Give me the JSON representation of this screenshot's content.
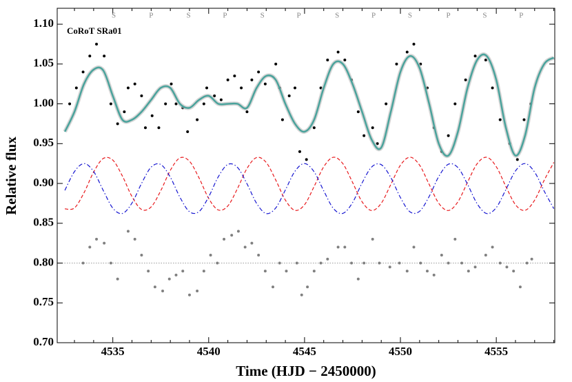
{
  "chart_data": {
    "type": "scatter",
    "label": "CoRoT SRa01",
    "xlabel": "Time (HJD − 2450000)",
    "ylabel": "Relative flux",
    "xlim": [
      4532.1,
      4558.05
    ],
    "ylim": [
      0.7,
      1.12
    ],
    "xticks": [
      4535,
      4540,
      4545,
      4550,
      4555
    ],
    "xminorticks": [
      4533,
      4534,
      4536,
      4537,
      4538,
      4539,
      4541,
      4542,
      4543,
      4544,
      4546,
      4547,
      4548,
      4549,
      4551,
      4552,
      4553,
      4554,
      4556,
      4557,
      4558
    ],
    "yticks": [
      {
        "value": 0.7,
        "label": "0.70"
      },
      0.75,
      {
        "value": 0.8,
        "label": "0.80"
      },
      0.85,
      {
        "value": 0.9,
        "label": "0.90"
      },
      0.95,
      {
        "value": 1.0,
        "label": "1.00"
      },
      1.05,
      {
        "value": 1.1,
        "label": "1.10"
      }
    ],
    "reference_line": 0.8,
    "phase_labels": [
      {
        "text": "S",
        "x": 4535.05
      },
      {
        "text": "P",
        "x": 4537.0
      },
      {
        "text": "S",
        "x": 4538.95
      },
      {
        "text": "P",
        "x": 4540.85
      },
      {
        "text": "S",
        "x": 4542.8
      },
      {
        "text": "P",
        "x": 4544.7
      },
      {
        "text": "S",
        "x": 4546.7
      },
      {
        "text": "P",
        "x": 4548.6
      },
      {
        "text": "S",
        "x": 4550.5
      },
      {
        "text": "P",
        "x": 4552.5
      },
      {
        "text": "S",
        "x": 4554.4
      },
      {
        "text": "P",
        "x": 4556.3
      }
    ],
    "x": [
      4532.5,
      4533,
      4533.5,
      4534,
      4534.5,
      4535,
      4535.5,
      4536,
      4536.5,
      4537,
      4537.5,
      4538,
      4538.5,
      4539,
      4539.5,
      4540,
      4540.5,
      4541,
      4541.5,
      4542,
      4542.5,
      4543,
      4543.5,
      4544,
      4544.5,
      4545,
      4545.5,
      4546,
      4546.5,
      4547,
      4547.5,
      4548,
      4548.5,
      4549,
      4549.5,
      4550,
      4550.5,
      4551,
      4551.5,
      4552,
      4552.5,
      4553,
      4553.5,
      4554,
      4554.5,
      4555,
      4555.5,
      4556,
      4556.5,
      4557,
      4557.5,
      4558
    ],
    "series": [
      {
        "type": "scatter",
        "color": "#000000",
        "x": [
          4532.75,
          4533.1,
          4533.45,
          4533.8,
          4534.15,
          4534.55,
          4534.9,
          4535.25,
          4535.6,
          4535.8,
          4536.15,
          4536.5,
          4536.7,
          4537.05,
          4537.4,
          4537.75,
          4538.05,
          4538.3,
          4538.65,
          4538.9,
          4539.4,
          4539.75,
          4539.9,
          4540.3,
          4540.65,
          4541.0,
          4541.35,
          4541.7,
          4542.0,
          4542.25,
          4542.6,
          4542.95,
          4543.5,
          4543.7,
          4543.85,
          4544.2,
          4544.5,
          4544.75,
          4545.1,
          4545.5,
          4545.85,
          4546.2,
          4546.75,
          4547.1,
          4547.45,
          4547.8,
          4548.1,
          4548.55,
          4548.8,
          4549.25,
          4549.8,
          4550.35,
          4550.7,
          4551.05,
          4551.4,
          4551.75,
          4552.15,
          4552.5,
          4552.85,
          4553.4,
          4553.9,
          4554.45,
          4554.8,
          4555.2,
          4555.7,
          4556.1,
          4556.45,
          4556.8
        ],
        "values": [
          1.0,
          1.02,
          1.04,
          1.06,
          1.075,
          1.06,
          1.0,
          0.975,
          0.99,
          1.02,
          1.025,
          1.01,
          0.97,
          0.985,
          0.97,
          1.0,
          1.025,
          1.0,
          0.995,
          0.965,
          0.98,
          1.0,
          1.02,
          1.01,
          1.005,
          1.03,
          1.035,
          1.02,
          0.99,
          1.03,
          1.04,
          1.025,
          1.05,
          1.02,
          0.98,
          1.01,
          1.02,
          0.94,
          0.93,
          0.97,
          1.02,
          1.055,
          1.065,
          1.055,
          1.03,
          0.99,
          0.96,
          0.97,
          0.95,
          1.0,
          1.05,
          1.065,
          1.075,
          1.05,
          1.02,
          0.97,
          0.94,
          0.96,
          1.0,
          1.03,
          1.06,
          1.055,
          1.02,
          0.98,
          0.95,
          0.93,
          0.98,
          1.0
        ]
      },
      {
        "type": "line",
        "color": "#4aa39c",
        "style": "solid",
        "values": [
          0.965,
          0.99,
          1.025,
          1.043,
          1.042,
          1.01,
          0.98,
          0.98,
          0.99,
          1.005,
          1.02,
          1.02,
          1.0,
          0.995,
          1.005,
          1.01,
          1.0,
          1.0,
          1.0,
          0.995,
          1.02,
          1.035,
          1.03,
          1.0,
          0.975,
          0.965,
          0.98,
          1.02,
          1.05,
          1.05,
          1.025,
          0.99,
          0.955,
          0.945,
          0.99,
          1.04,
          1.06,
          1.045,
          1.0,
          0.95,
          0.935,
          0.965,
          1.02,
          1.055,
          1.06,
          1.03,
          0.97,
          0.935,
          0.96,
          1.02,
          1.05,
          1.058
        ]
      },
      {
        "type": "line",
        "color": "#e8191c",
        "style": "dashed",
        "values": [
          0.8681,
          0.8692,
          0.8884,
          0.9143,
          0.9313,
          0.9293,
          0.9093,
          0.8835,
          0.8673,
          0.8705,
          0.8909,
          0.9165,
          0.9321,
          0.9279,
          0.9068,
          0.8812,
          0.8667,
          0.8718,
          0.8935,
          0.9189,
          0.9326,
          0.9264,
          0.9042,
          0.8791,
          0.8662,
          0.8733,
          0.8962,
          0.9209,
          0.9329,
          0.9248,
          0.9015,
          0.877,
          0.866,
          0.8751,
          0.8988,
          0.9229,
          0.933,
          0.923,
          0.8988,
          0.8751,
          0.866,
          0.877,
          0.9015,
          0.9247,
          0.9329,
          0.921,
          0.8962,
          0.8733,
          0.8662,
          0.879,
          0.9041,
          0.9264
        ]
      },
      {
        "type": "line",
        "color": "#1515d0",
        "style": "dashdot",
        "values": [
          0.8913,
          0.9149,
          0.925,
          0.915,
          0.8913,
          0.869,
          0.8623,
          0.8754,
          0.9001,
          0.9205,
          0.9238,
          0.9078,
          0.8827,
          0.8645,
          0.8647,
          0.8832,
          0.9083,
          0.9239,
          0.9202,
          0.8995,
          0.875,
          0.8622,
          0.8693,
          0.8918,
          0.9153,
          0.925,
          0.9146,
          0.8908,
          0.8687,
          0.8624,
          0.8758,
          0.9006,
          0.9207,
          0.9236,
          0.9074,
          0.8823,
          0.8643,
          0.865,
          0.8837,
          0.9087,
          0.9241,
          0.9199,
          0.899,
          0.8746,
          0.8622,
          0.8697,
          0.8923,
          0.9157,
          0.925,
          0.9142,
          0.8903,
          0.8684
        ]
      },
      {
        "type": "scatter",
        "color": "#808080",
        "x": [
          4533.45,
          4533.8,
          4534.15,
          4534.55,
          4534.9,
          4535.25,
          4535.8,
          4536.15,
          4536.5,
          4536.85,
          4537.2,
          4537.6,
          4537.95,
          4538.3,
          4538.65,
          4539.0,
          4539.4,
          4539.75,
          4540.1,
          4540.45,
          4540.8,
          4541.2,
          4541.55,
          4541.9,
          4542.25,
          4542.6,
          4542.95,
          4543.35,
          4543.7,
          4544.05,
          4544.6,
          4544.85,
          4545.15,
          4545.5,
          4545.85,
          4546.2,
          4546.75,
          4547.1,
          4547.45,
          4547.8,
          4548.1,
          4548.55,
          4548.9,
          4549.45,
          4549.95,
          4550.35,
          4550.7,
          4551.05,
          4551.4,
          4551.75,
          4552.15,
          4552.5,
          4552.85,
          4553.2,
          4553.55,
          4553.9,
          4554.45,
          4554.8,
          4555.2,
          4555.55,
          4555.9,
          4556.25,
          4556.6,
          4556.85
        ],
        "values": [
          0.8,
          0.82,
          0.83,
          0.825,
          0.8,
          0.78,
          0.84,
          0.83,
          0.81,
          0.79,
          0.77,
          0.765,
          0.78,
          0.785,
          0.79,
          0.76,
          0.765,
          0.79,
          0.81,
          0.8,
          0.83,
          0.835,
          0.84,
          0.82,
          0.825,
          0.81,
          0.79,
          0.77,
          0.8,
          0.79,
          0.8,
          0.76,
          0.77,
          0.79,
          0.8,
          0.805,
          0.82,
          0.82,
          0.8,
          0.78,
          0.8,
          0.83,
          0.8,
          0.795,
          0.8,
          0.79,
          0.82,
          0.8,
          0.79,
          0.785,
          0.81,
          0.8,
          0.83,
          0.8,
          0.79,
          0.795,
          0.81,
          0.82,
          0.8,
          0.795,
          0.79,
          0.77,
          0.8,
          0.805
        ]
      }
    ]
  }
}
